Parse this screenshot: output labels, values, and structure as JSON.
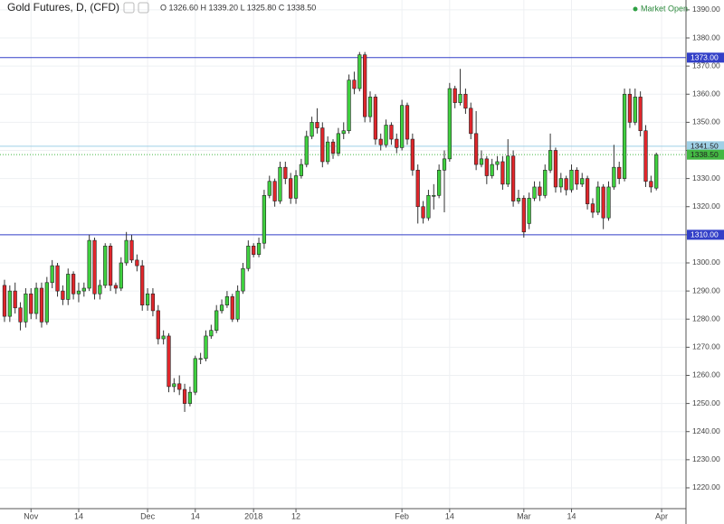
{
  "chart_data": {
    "type": "candlestick",
    "title": "Gold Futures, D, (CFD)",
    "legend_ohlc": "O 1326.60 H 1339.20 L 1325.80 C 1338.50",
    "status": "Market Open",
    "up_color": "#3fd13f",
    "down_color": "#e0262b",
    "grid": true,
    "xlim": [
      -0.85,
      128.6
    ],
    "ylim": [
      1212.6,
      1393.5
    ],
    "xticks": [
      {
        "value": 5,
        "label": "Nov"
      },
      {
        "value": 14,
        "label": "14"
      },
      {
        "value": 27,
        "label": "Dec"
      },
      {
        "value": 36,
        "label": "14"
      },
      {
        "value": 47,
        "label": "2018"
      },
      {
        "value": 55,
        "label": "12"
      },
      {
        "value": 75,
        "label": "Feb"
      },
      {
        "value": 84,
        "label": "14"
      },
      {
        "value": 98,
        "label": "Mar"
      },
      {
        "value": 107,
        "label": "14"
      },
      {
        "value": 124,
        "label": "Apr"
      }
    ],
    "yticks": [
      {
        "value": 1220,
        "label": "1220.00"
      },
      {
        "value": 1230,
        "label": "1230.00"
      },
      {
        "value": 1240,
        "label": "1240.00"
      },
      {
        "value": 1250,
        "label": "1250.00"
      },
      {
        "value": 1260,
        "label": "1260.00"
      },
      {
        "value": 1270,
        "label": "1270.00"
      },
      {
        "value": 1280,
        "label": "1280.00"
      },
      {
        "value": 1290,
        "label": "1290.00"
      },
      {
        "value": 1300,
        "label": "1300.00"
      },
      {
        "value": 1310,
        "label": "1310.00"
      },
      {
        "value": 1320,
        "label": "1320.00"
      },
      {
        "value": 1330,
        "label": "1330.00"
      },
      {
        "value": 1340,
        "label": "1340.00"
      },
      {
        "value": 1350,
        "label": "1350.00"
      },
      {
        "value": 1360,
        "label": "1360.00"
      },
      {
        "value": 1370,
        "label": "1370.00"
      },
      {
        "value": 1380,
        "label": "1380.00"
      },
      {
        "value": 1390,
        "label": "1390.00"
      }
    ],
    "levels": [
      {
        "value": 1373,
        "label": "1373.00",
        "color": "#3340c8",
        "text_color": "#ffffff",
        "dash": false
      },
      {
        "value": 1341.5,
        "label": "1341.50",
        "color": "#9fd0e6",
        "text_color": "#222222",
        "dash": false
      },
      {
        "value": 1338.5,
        "label": "1338.50",
        "color": "#43b843",
        "text_color": "#222222",
        "dash": true
      },
      {
        "value": 1310,
        "label": "1310.00",
        "color": "#3340c8",
        "text_color": "#ffffff",
        "dash": false
      }
    ],
    "candles": [
      [
        1292,
        1294,
        1279,
        1281
      ],
      [
        1281,
        1292,
        1279,
        1290
      ],
      [
        1290,
        1293,
        1282,
        1284
      ],
      [
        1284,
        1286,
        1276,
        1279
      ],
      [
        1279,
        1291,
        1277,
        1289
      ],
      [
        1289,
        1291,
        1280,
        1282
      ],
      [
        1282,
        1293,
        1280,
        1291
      ],
      [
        1291,
        1293,
        1277,
        1279
      ],
      [
        1279,
        1295,
        1278,
        1293
      ],
      [
        1293,
        1301,
        1291,
        1299
      ],
      [
        1299,
        1300,
        1288,
        1290
      ],
      [
        1290,
        1292,
        1285,
        1287
      ],
      [
        1287,
        1298,
        1285,
        1296
      ],
      [
        1296,
        1297,
        1287,
        1289
      ],
      [
        1289,
        1293,
        1286,
        1290
      ],
      [
        1290,
        1293,
        1288,
        1291
      ],
      [
        1291,
        1310,
        1290,
        1308
      ],
      [
        1308,
        1309,
        1287,
        1289
      ],
      [
        1289,
        1294,
        1287,
        1292
      ],
      [
        1292,
        1307,
        1291,
        1306
      ],
      [
        1306,
        1307,
        1290,
        1292
      ],
      [
        1292,
        1293,
        1289,
        1291
      ],
      [
        1291,
        1302,
        1290,
        1300
      ],
      [
        1300,
        1311,
        1299,
        1308
      ],
      [
        1308,
        1310,
        1300,
        1301
      ],
      [
        1301,
        1303,
        1297,
        1299
      ],
      [
        1299,
        1301,
        1283,
        1285
      ],
      [
        1285,
        1291,
        1283,
        1289
      ],
      [
        1289,
        1291,
        1281,
        1283
      ],
      [
        1283,
        1285,
        1271,
        1273
      ],
      [
        1273,
        1276,
        1271,
        1274
      ],
      [
        1274,
        1275,
        1254,
        1256
      ],
      [
        1256,
        1259,
        1254,
        1257
      ],
      [
        1257,
        1260,
        1253,
        1255
      ],
      [
        1255,
        1257,
        1247,
        1250
      ],
      [
        1250,
        1256,
        1249,
        1254
      ],
      [
        1254,
        1267,
        1253,
        1266
      ],
      [
        1266,
        1268,
        1264,
        1266
      ],
      [
        1266,
        1276,
        1265,
        1274
      ],
      [
        1274,
        1278,
        1273,
        1276
      ],
      [
        1276,
        1285,
        1275,
        1283
      ],
      [
        1283,
        1287,
        1282,
        1285
      ],
      [
        1285,
        1290,
        1284,
        1288
      ],
      [
        1288,
        1289,
        1279,
        1280
      ],
      [
        1280,
        1292,
        1279,
        1290
      ],
      [
        1290,
        1300,
        1289,
        1298
      ],
      [
        1298,
        1308,
        1297,
        1306
      ],
      [
        1306,
        1307,
        1302,
        1303
      ],
      [
        1303,
        1309,
        1302,
        1307
      ],
      [
        1307,
        1326,
        1305,
        1324
      ],
      [
        1324,
        1331,
        1323,
        1329
      ],
      [
        1329,
        1330,
        1320,
        1322
      ],
      [
        1322,
        1336,
        1321,
        1334
      ],
      [
        1334,
        1336,
        1328,
        1330
      ],
      [
        1330,
        1332,
        1321,
        1323
      ],
      [
        1323,
        1333,
        1321,
        1331
      ],
      [
        1331,
        1337,
        1330,
        1335
      ],
      [
        1335,
        1347,
        1334,
        1345
      ],
      [
        1345,
        1352,
        1344,
        1350
      ],
      [
        1350,
        1355,
        1346,
        1348
      ],
      [
        1348,
        1350,
        1334,
        1336
      ],
      [
        1336,
        1345,
        1335,
        1343
      ],
      [
        1343,
        1344,
        1337,
        1339
      ],
      [
        1339,
        1348,
        1338,
        1346
      ],
      [
        1346,
        1350,
        1344,
        1347
      ],
      [
        1347,
        1367,
        1346,
        1365
      ],
      [
        1365,
        1368,
        1360,
        1362
      ],
      [
        1362,
        1375,
        1361,
        1374
      ],
      [
        1374,
        1375,
        1350,
        1352
      ],
      [
        1352,
        1361,
        1350,
        1359
      ],
      [
        1359,
        1360,
        1342,
        1344
      ],
      [
        1344,
        1346,
        1340,
        1342
      ],
      [
        1342,
        1351,
        1341,
        1349
      ],
      [
        1349,
        1350,
        1342,
        1344
      ],
      [
        1344,
        1346,
        1339,
        1341
      ],
      [
        1341,
        1358,
        1340,
        1356
      ],
      [
        1356,
        1357,
        1342,
        1344
      ],
      [
        1344,
        1346,
        1331,
        1333
      ],
      [
        1333,
        1335,
        1314,
        1320
      ],
      [
        1320,
        1322,
        1314,
        1316
      ],
      [
        1316,
        1326,
        1315,
        1324
      ],
      [
        1324,
        1328,
        1319,
        1324
      ],
      [
        1324,
        1335,
        1323,
        1333
      ],
      [
        1333,
        1340,
        1318,
        1337
      ],
      [
        1337,
        1364,
        1336,
        1362
      ],
      [
        1362,
        1363,
        1355,
        1357
      ],
      [
        1357,
        1369,
        1356,
        1360
      ],
      [
        1360,
        1362,
        1353,
        1355
      ],
      [
        1355,
        1357,
        1344,
        1346
      ],
      [
        1346,
        1354,
        1333,
        1335
      ],
      [
        1335,
        1340,
        1334,
        1337
      ],
      [
        1337,
        1338,
        1328,
        1331
      ],
      [
        1331,
        1337,
        1330,
        1335
      ],
      [
        1335,
        1338,
        1333,
        1336
      ],
      [
        1336,
        1338,
        1326,
        1328
      ],
      [
        1328,
        1344,
        1327,
        1338
      ],
      [
        1338,
        1340,
        1320,
        1322
      ],
      [
        1322,
        1326,
        1321,
        1323
      ],
      [
        1323,
        1324,
        1309,
        1311
      ],
      [
        1314,
        1325,
        1312,
        1323
      ],
      [
        1323,
        1329,
        1322,
        1327
      ],
      [
        1327,
        1329,
        1322,
        1324
      ],
      [
        1324,
        1335,
        1323,
        1333
      ],
      [
        1333,
        1346,
        1332,
        1340
      ],
      [
        1340,
        1341,
        1325,
        1327
      ],
      [
        1327,
        1332,
        1325,
        1330
      ],
      [
        1330,
        1331,
        1324,
        1326
      ],
      [
        1326,
        1335,
        1325,
        1333
      ],
      [
        1333,
        1334,
        1326,
        1328
      ],
      [
        1328,
        1332,
        1327,
        1330
      ],
      [
        1330,
        1331,
        1319,
        1321
      ],
      [
        1321,
        1323,
        1316,
        1318
      ],
      [
        1318,
        1329,
        1317,
        1327
      ],
      [
        1327,
        1328,
        1312,
        1316
      ],
      [
        1316,
        1329,
        1315,
        1327
      ],
      [
        1327,
        1342,
        1326,
        1334
      ],
      [
        1334,
        1336,
        1328,
        1330
      ],
      [
        1330,
        1362,
        1329,
        1360
      ],
      [
        1360,
        1362,
        1348,
        1350
      ],
      [
        1350,
        1362,
        1349,
        1359
      ],
      [
        1359,
        1361,
        1345,
        1347
      ],
      [
        1347,
        1349,
        1327,
        1329
      ],
      [
        1329,
        1331,
        1325,
        1327
      ],
      [
        1326.6,
        1339.2,
        1325.8,
        1338.5
      ]
    ]
  }
}
